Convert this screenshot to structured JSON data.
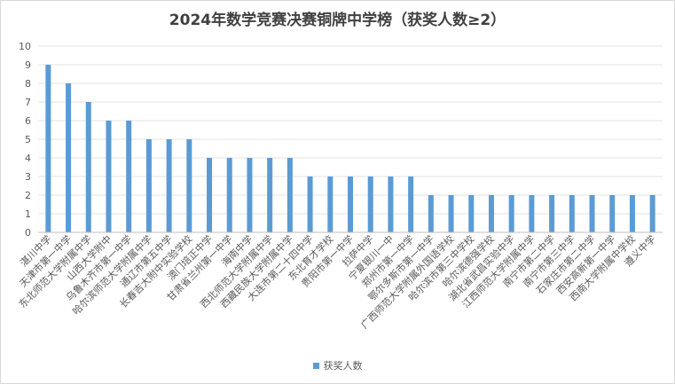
{
  "chart_data": {
    "type": "bar",
    "title": "2024年数学竞赛决赛铜牌中学榜（获奖人数≥2）",
    "xlabel": "",
    "ylabel": "",
    "ylim": [
      0,
      10
    ],
    "yticks": [
      0,
      1,
      2,
      3,
      4,
      5,
      6,
      7,
      8,
      9,
      10
    ],
    "grid": true,
    "legend_position": "bottom",
    "bar_color": "#5b9bd5",
    "categories": [
      "湛川中学",
      "天津市第一中学",
      "东北师范大学附属中学",
      "山西大学附中",
      "乌鲁木齐市第一中学",
      "哈尔滨师范大学附属中学",
      "通辽市第五中学",
      "长春吉大附中实验学校",
      "澳门培正中学",
      "甘肃省兰州第一中学",
      "海南中学",
      "西北师范大学附属中学",
      "西藏民族大学附属中学",
      "大连市第二十四中学",
      "东北育才学校",
      "贵阳市第一中学",
      "拉萨中学",
      "宁夏银川一中",
      "郑州市第一中学",
      "鄂尔多斯市第一中学",
      "广西师范大学附属外国语学校",
      "哈尔滨市第三中学校",
      "哈尔滨德强学校",
      "湖北省武昌实验中学",
      "江西师范大学附属中学",
      "南宁市第二中学",
      "南宁市第三中学",
      "石家庄市第二中学",
      "西安高新第一中学",
      "西南大学附属中学校",
      "遵义中学"
    ],
    "series": [
      {
        "name": "获奖人数",
        "values": [
          9,
          8,
          7,
          6,
          6,
          5,
          5,
          5,
          4,
          4,
          4,
          4,
          4,
          3,
          3,
          3,
          3,
          3,
          3,
          2,
          2,
          2,
          2,
          2,
          2,
          2,
          2,
          2,
          2,
          2,
          2
        ]
      }
    ]
  }
}
